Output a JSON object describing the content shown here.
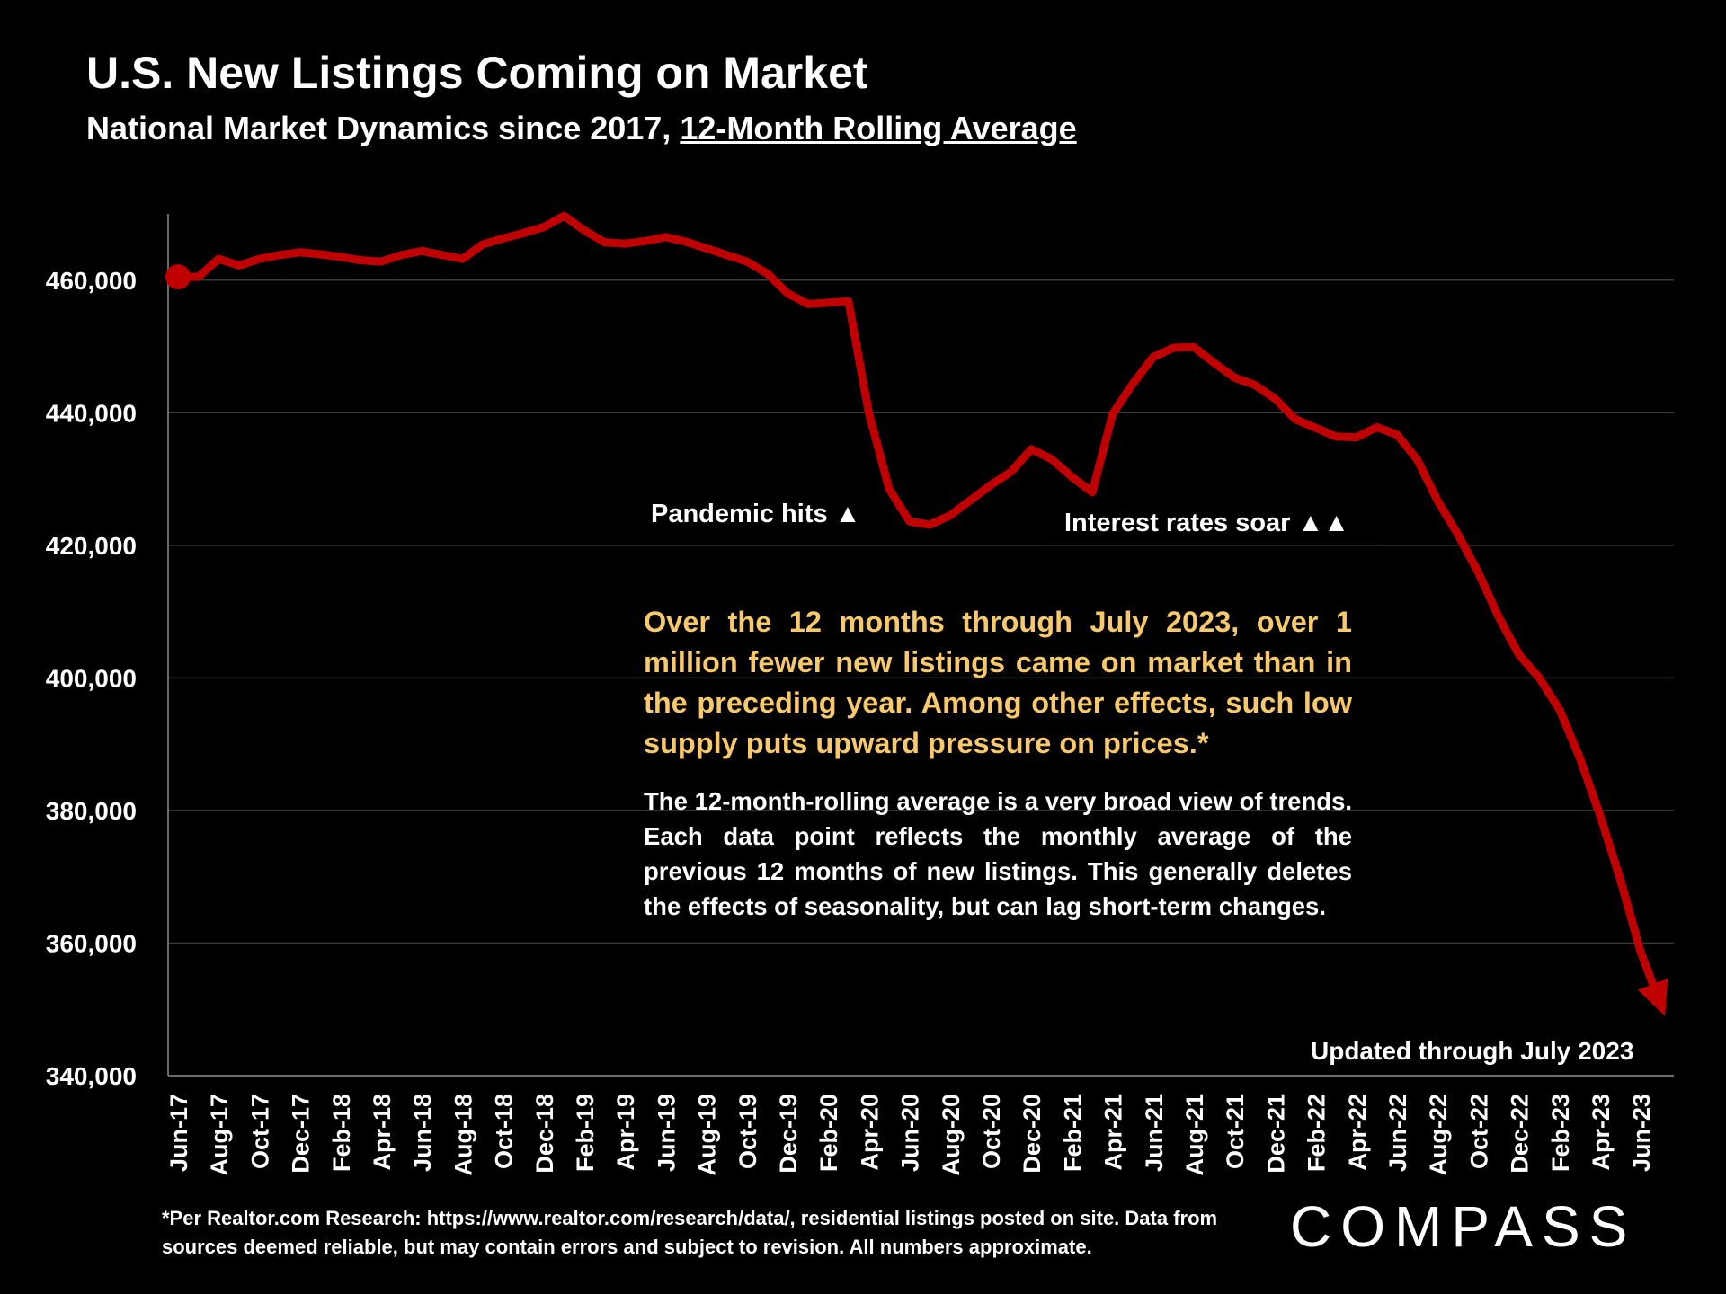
{
  "header": {
    "title": "U.S. New Listings Coming on Market",
    "subtitle_prefix": "National Market Dynamics since 2017, ",
    "subtitle_underlined": "12-Month Rolling Average"
  },
  "annotations": {
    "pandemic": "Pandemic hits ▲",
    "rates": "Interest rates soar ▲▲",
    "highlight": "Over the 12 months through July 2023, over 1 million fewer new listings came on market than in the preceding year. Among other effects, such low supply puts upward pressure on prices.*",
    "note": "The 12-month-rolling average is a very broad view of trends. Each data point reflects the monthly average of the previous 12 months of new listings. This generally deletes the effects of seasonality, but can lag short-term changes.",
    "updated": "Updated through July 2023"
  },
  "footer": {
    "footnote": "*Per Realtor.com Research:  https://www.realtor.com/research/data/, residential listings posted on site. Data from sources deemed reliable, but may contain errors and subject to revision. All numbers approximate.",
    "logo": "COMPASS"
  },
  "colors": {
    "line": "#c00000",
    "background": "#000000",
    "highlight_text": "#f7c96a",
    "grid": "#3a3a3a"
  },
  "chart_data": {
    "type": "line",
    "title": "U.S. New Listings Coming on Market",
    "ylim": [
      340000,
      470000
    ],
    "yticks": [
      340000,
      360000,
      380000,
      400000,
      420000,
      440000,
      460000
    ],
    "ytick_labels": [
      "340,000",
      "360,000",
      "380,000",
      "400,000",
      "420,000",
      "440,000",
      "460,000"
    ],
    "grid": "horizontal",
    "x_tick_labels": [
      "Jun-17",
      "Aug-17",
      "Oct-17",
      "Dec-17",
      "Feb-18",
      "Apr-18",
      "Jun-18",
      "Aug-18",
      "Oct-18",
      "Dec-18",
      "Feb-19",
      "Apr-19",
      "Jun-19",
      "Aug-19",
      "Oct-19",
      "Dec-19",
      "Feb-20",
      "Apr-20",
      "Jun-20",
      "Aug-20",
      "Oct-20",
      "Dec-20",
      "Feb-21",
      "Apr-21",
      "Jun-21",
      "Aug-21",
      "Oct-21",
      "Dec-21",
      "Feb-22",
      "Apr-22",
      "Jun-22",
      "Aug-22",
      "Oct-22",
      "Dec-22",
      "Feb-23",
      "Apr-23",
      "Jun-23"
    ],
    "x": [
      "Jun-17",
      "Jul-17",
      "Aug-17",
      "Sep-17",
      "Oct-17",
      "Nov-17",
      "Dec-17",
      "Jan-18",
      "Feb-18",
      "Mar-18",
      "Apr-18",
      "May-18",
      "Jun-18",
      "Jul-18",
      "Aug-18",
      "Sep-18",
      "Oct-18",
      "Nov-18",
      "Dec-18",
      "Jan-19",
      "Feb-19",
      "Mar-19",
      "Apr-19",
      "May-19",
      "Jun-19",
      "Jul-19",
      "Aug-19",
      "Sep-19",
      "Oct-19",
      "Nov-19",
      "Dec-19",
      "Jan-20",
      "Feb-20",
      "Mar-20",
      "Apr-20",
      "May-20",
      "Jun-20",
      "Jul-20",
      "Aug-20",
      "Sep-20",
      "Oct-20",
      "Nov-20",
      "Dec-20",
      "Jan-21",
      "Feb-21",
      "Mar-21",
      "Apr-21",
      "May-21",
      "Jun-21",
      "Jul-21",
      "Aug-21",
      "Sep-21",
      "Oct-21",
      "Nov-21",
      "Dec-21",
      "Jan-22",
      "Feb-22",
      "Mar-22",
      "Apr-22",
      "May-22",
      "Jun-22",
      "Jul-22",
      "Aug-22",
      "Sep-22",
      "Oct-22",
      "Nov-22",
      "Dec-22",
      "Jan-23",
      "Feb-23",
      "Mar-23",
      "Apr-23",
      "May-23",
      "Jun-23",
      "Jul-23"
    ],
    "series": [
      {
        "values": [
          460500,
          460500,
          463200,
          462200,
          463200,
          463800,
          464200,
          463900,
          463500,
          463000,
          462800,
          463800,
          464400,
          463800,
          463200,
          465400,
          466300,
          467100,
          468000,
          469700,
          467500,
          465700,
          465500,
          465900,
          466500,
          465800,
          464800,
          463800,
          462800,
          461000,
          458000,
          456400,
          456600,
          456800,
          440000,
          428500,
          423600,
          423100,
          424500,
          426800,
          429100,
          431100,
          434500,
          433000,
          430300,
          428000,
          439800,
          444400,
          448400,
          449800,
          449900,
          447500,
          445300,
          444200,
          442100,
          439000,
          437700,
          436400,
          436300,
          437800,
          436700,
          432900,
          426700,
          421600,
          415900,
          409200,
          403500,
          400000,
          395200,
          387900,
          379200,
          369500,
          358600,
          350500
        ]
      }
    ]
  }
}
